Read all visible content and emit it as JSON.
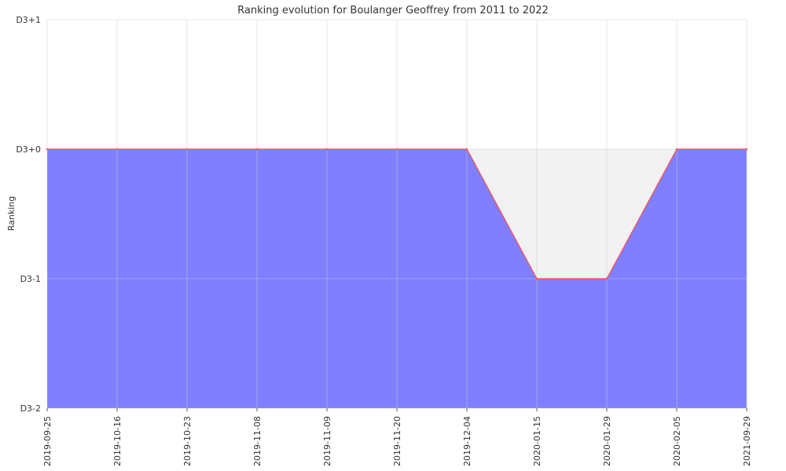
{
  "chart_data": {
    "type": "area",
    "title": "Ranking evolution for Boulanger Geoffrey from 2011 to 2022",
    "ylabel": "Ranking",
    "xlabel": "",
    "categories": [
      "2019-09-25",
      "2019-10-16",
      "2019-10-23",
      "2019-11-08",
      "2019-11-09",
      "2019-11-20",
      "2019-12-04",
      "2020-01-15",
      "2020-01-29",
      "2020-02-05",
      "2021-09-29"
    ],
    "y_ticks": [
      {
        "value": 1,
        "label": "D3+1"
      },
      {
        "value": 0,
        "label": "D3+0"
      },
      {
        "value": -1,
        "label": "D3-1"
      },
      {
        "value": -2,
        "label": "D3-2"
      }
    ],
    "ylim": [
      -2,
      1
    ],
    "series": [
      {
        "values": [
          0,
          0,
          0,
          0,
          0,
          0,
          0,
          -1,
          -1,
          0,
          0
        ]
      }
    ],
    "grid": true,
    "colors": {
      "area_fill": "#0000ff",
      "area_opacity": 0.5,
      "line": "#ff4d4d",
      "shade": "#cccccc",
      "grid": "#cccccc"
    }
  }
}
